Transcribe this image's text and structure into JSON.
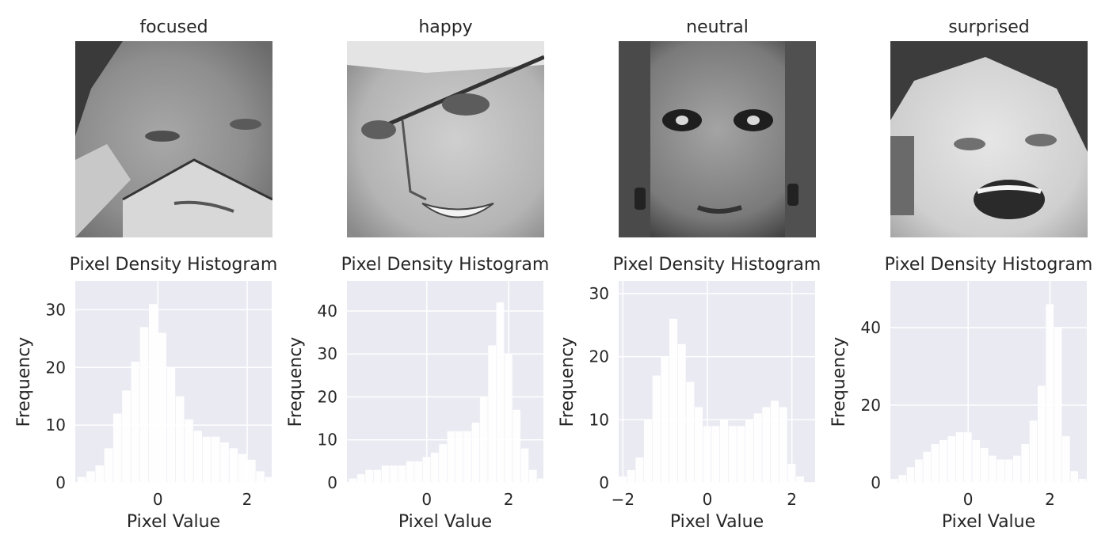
{
  "faces": [
    {
      "label": "focused"
    },
    {
      "label": "happy"
    },
    {
      "label": "neutral"
    },
    {
      "label": "surprised"
    }
  ],
  "chart_data": [
    {
      "type": "bar",
      "title": "Pixel Density Histogram",
      "xlabel": "Pixel Value",
      "ylabel": "Frequency",
      "xlim": [
        -1.85,
        2.55
      ],
      "ylim": [
        0,
        35
      ],
      "xticks": [
        0,
        2
      ],
      "yticks": [
        0,
        10,
        20,
        30
      ],
      "grid": true,
      "x": [
        -1.7,
        -1.5,
        -1.3,
        -1.1,
        -0.9,
        -0.7,
        -0.5,
        -0.3,
        -0.1,
        0.1,
        0.3,
        0.5,
        0.7,
        0.9,
        1.1,
        1.3,
        1.5,
        1.7,
        1.9,
        2.1,
        2.3,
        2.5
      ],
      "values": [
        1,
        2,
        3,
        6,
        12,
        16,
        21,
        27,
        31,
        26,
        20,
        15,
        11,
        9,
        8,
        8,
        7,
        6,
        5,
        4,
        2,
        1
      ]
    },
    {
      "type": "bar",
      "title": "Pixel Density Histogram",
      "xlabel": "Pixel Value",
      "ylabel": "Frequency",
      "xlim": [
        -1.95,
        2.85
      ],
      "ylim": [
        0,
        47
      ],
      "xticks": [
        0,
        2
      ],
      "yticks": [
        0,
        10,
        20,
        30,
        40
      ],
      "grid": true,
      "x": [
        -1.8,
        -1.6,
        -1.4,
        -1.2,
        -1.0,
        -0.8,
        -0.6,
        -0.4,
        -0.2,
        0.0,
        0.2,
        0.4,
        0.6,
        0.8,
        1.0,
        1.2,
        1.4,
        1.6,
        1.8,
        2.0,
        2.2,
        2.4,
        2.6,
        2.8
      ],
      "values": [
        1,
        2,
        3,
        3,
        4,
        4,
        4,
        5,
        5,
        6,
        7,
        9,
        12,
        12,
        12,
        14,
        20,
        32,
        42,
        30,
        17,
        8,
        3,
        1
      ]
    },
    {
      "type": "bar",
      "title": "Pixel Density Histogram",
      "xlabel": "Pixel Value",
      "ylabel": "Frequency",
      "xlim": [
        -2.1,
        2.55
      ],
      "ylim": [
        0,
        32
      ],
      "xticks": [
        -2,
        0,
        2
      ],
      "yticks": [
        0,
        10,
        20,
        30
      ],
      "grid": true,
      "x": [
        -2.0,
        -1.8,
        -1.6,
        -1.4,
        -1.2,
        -1.0,
        -0.8,
        -0.6,
        -0.4,
        -0.2,
        0.0,
        0.2,
        0.4,
        0.6,
        0.8,
        1.0,
        1.2,
        1.4,
        1.6,
        1.8,
        2.0,
        2.2,
        2.4
      ],
      "values": [
        1,
        2,
        4,
        10,
        17,
        20,
        26,
        22,
        16,
        12,
        9,
        9,
        10,
        9,
        9,
        10,
        11,
        12,
        13,
        12,
        3,
        1,
        0
      ]
    },
    {
      "type": "bar",
      "title": "Pixel Density Histogram",
      "xlabel": "Pixel Value",
      "ylabel": "Frequency",
      "xlim": [
        -1.9,
        2.9
      ],
      "ylim": [
        0,
        52
      ],
      "xticks": [
        0,
        2
      ],
      "yticks": [
        0,
        20,
        40
      ],
      "grid": true,
      "x": [
        -1.8,
        -1.6,
        -1.4,
        -1.2,
        -1.0,
        -0.8,
        -0.6,
        -0.4,
        -0.2,
        0.0,
        0.2,
        0.4,
        0.6,
        0.8,
        1.0,
        1.2,
        1.4,
        1.6,
        1.8,
        2.0,
        2.2,
        2.4,
        2.6,
        2.8
      ],
      "values": [
        1,
        2,
        4,
        6,
        8,
        10,
        11,
        12,
        13,
        13,
        11,
        9,
        7,
        6,
        6,
        7,
        10,
        16,
        25,
        46,
        40,
        12,
        3,
        1
      ]
    }
  ]
}
